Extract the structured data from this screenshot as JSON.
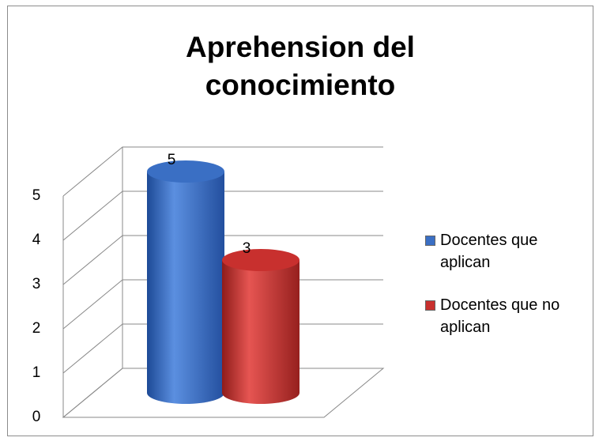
{
  "chart_data": {
    "type": "bar3d",
    "title": "Aprehension del conocimiento",
    "categories": [
      null
    ],
    "series": [
      {
        "name": "Docentes que aplican",
        "color": "#3a6fc4",
        "values": [
          5
        ]
      },
      {
        "name": "Docentes que no aplican",
        "color": "#c8302e",
        "values": [
          3
        ]
      }
    ],
    "ylim": [
      0,
      5
    ],
    "yticks": [
      0,
      1,
      2,
      3,
      4,
      5
    ],
    "grid": true,
    "legend": "right"
  }
}
